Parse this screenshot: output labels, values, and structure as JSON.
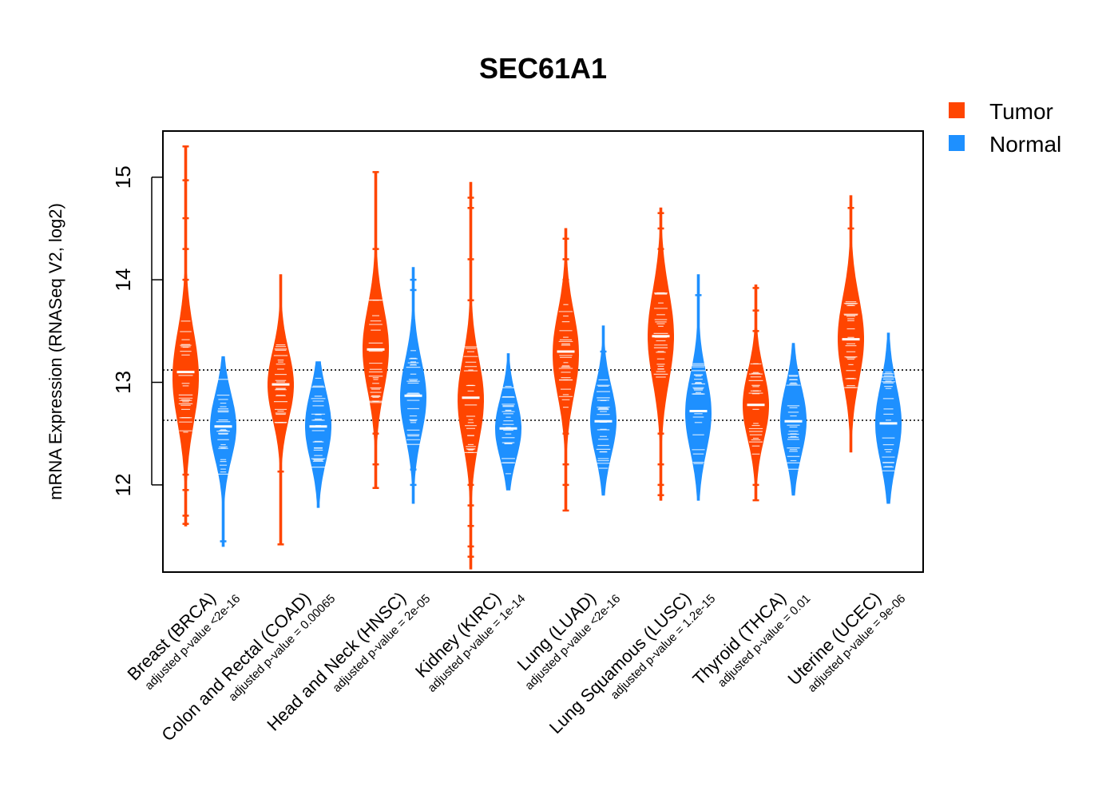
{
  "chart_data": {
    "type": "violin-beeswarm",
    "title": "SEC61A1",
    "ylabel": "mRNA Expression (RNASeq V2, log2)",
    "xlabel": "",
    "ylim": [
      11.15,
      15.45
    ],
    "yticks": [
      12,
      13,
      14,
      15
    ],
    "reference_lines": [
      13.12,
      12.63
    ],
    "legend": {
      "position": "top-right, outside plot",
      "entries": [
        {
          "name": "Tumor",
          "color": "#FF4500"
        },
        {
          "name": "Normal",
          "color": "#1E90FF"
        }
      ]
    },
    "categories": [
      {
        "label": "Breast (BRCA)",
        "pvalue": "adjusted p-value <2e-16",
        "tumor": {
          "median": 13.1,
          "min": 11.6,
          "max": 15.3,
          "q1": 12.75,
          "q3": 13.35,
          "outliers": [
            15.3,
            14.97,
            14.6,
            14.3,
            14.0,
            13.8,
            12.3,
            12.1,
            11.95,
            11.7,
            11.62
          ]
        },
        "normal": {
          "median": 12.57,
          "min": 11.4,
          "max": 13.25,
          "q1": 12.35,
          "q3": 12.78,
          "outliers": [
            11.45
          ]
        }
      },
      {
        "label": "Colon and Rectal (COAD)",
        "pvalue": "adjusted p-value = 0.00065",
        "tumor": {
          "median": 12.98,
          "min": 11.42,
          "max": 14.05,
          "q1": 12.75,
          "q3": 13.2,
          "outliers": [
            12.13,
            11.42
          ]
        },
        "normal": {
          "median": 12.57,
          "min": 11.78,
          "max": 13.2,
          "q1": 12.35,
          "q3": 12.8,
          "outliers": []
        }
      },
      {
        "label": "Head and Neck (HNSC)",
        "pvalue": "adjusted p-value = 2e-05",
        "tumor": {
          "median": 13.32,
          "min": 11.97,
          "max": 15.05,
          "q1": 13.05,
          "q3": 13.6,
          "outliers": [
            15.05,
            14.3,
            12.5,
            12.2,
            11.97
          ]
        },
        "normal": {
          "median": 12.87,
          "min": 11.82,
          "max": 14.12,
          "q1": 12.6,
          "q3": 13.1,
          "outliers": [
            14.0,
            13.9,
            12.15,
            12.0
          ]
        }
      },
      {
        "label": "Kidney (KIRC)",
        "pvalue": "adjusted p-value = 1e-14",
        "tumor": {
          "median": 12.85,
          "min": 11.18,
          "max": 14.95,
          "q1": 12.55,
          "q3": 13.1,
          "outliers": [
            14.8,
            14.7,
            14.2,
            13.8,
            13.5,
            12.0,
            11.8,
            11.6,
            11.4,
            11.3
          ]
        },
        "normal": {
          "median": 12.55,
          "min": 11.95,
          "max": 13.28,
          "q1": 12.35,
          "q3": 12.75,
          "outliers": []
        }
      },
      {
        "label": "Lung (LUAD)",
        "pvalue": "adjusted p-value <2e-16",
        "tumor": {
          "median": 13.3,
          "min": 11.75,
          "max": 14.5,
          "q1": 13.0,
          "q3": 13.55,
          "outliers": [
            14.4,
            14.2,
            14.0,
            12.5,
            12.2,
            12.0,
            11.75
          ]
        },
        "normal": {
          "median": 12.62,
          "min": 11.9,
          "max": 13.55,
          "q1": 12.4,
          "q3": 12.85,
          "outliers": [
            13.3
          ]
        }
      },
      {
        "label": "Lung Squamous (LUSC)",
        "pvalue": "adjusted p-value = 1.2e-15",
        "tumor": {
          "median": 13.45,
          "min": 11.85,
          "max": 14.7,
          "q1": 13.15,
          "q3": 13.75,
          "outliers": [
            14.65,
            14.5,
            14.3,
            14.2,
            12.7,
            12.5,
            12.2,
            12.0,
            11.9
          ]
        },
        "normal": {
          "median": 12.72,
          "min": 11.85,
          "max": 14.05,
          "q1": 12.45,
          "q3": 12.95,
          "outliers": [
            13.85
          ]
        }
      },
      {
        "label": "Thyroid (THCA)",
        "pvalue": "adjusted p-value = 0.01",
        "tumor": {
          "median": 12.78,
          "min": 11.85,
          "max": 13.95,
          "q1": 12.55,
          "q3": 13.0,
          "outliers": [
            13.92,
            13.7,
            13.5,
            13.3,
            12.2,
            12.0,
            11.85
          ]
        },
        "normal": {
          "median": 12.62,
          "min": 11.9,
          "max": 13.38,
          "q1": 12.4,
          "q3": 12.85,
          "outliers": []
        }
      },
      {
        "label": "Uterine (UCEC)",
        "pvalue": "adjusted p-value = 9e-06",
        "tumor": {
          "median": 13.42,
          "min": 12.32,
          "max": 14.82,
          "q1": 13.15,
          "q3": 13.7,
          "outliers": [
            14.7,
            14.5
          ]
        },
        "normal": {
          "median": 12.6,
          "min": 11.82,
          "max": 13.48,
          "q1": 12.35,
          "q3": 12.85,
          "outliers": []
        }
      }
    ]
  }
}
